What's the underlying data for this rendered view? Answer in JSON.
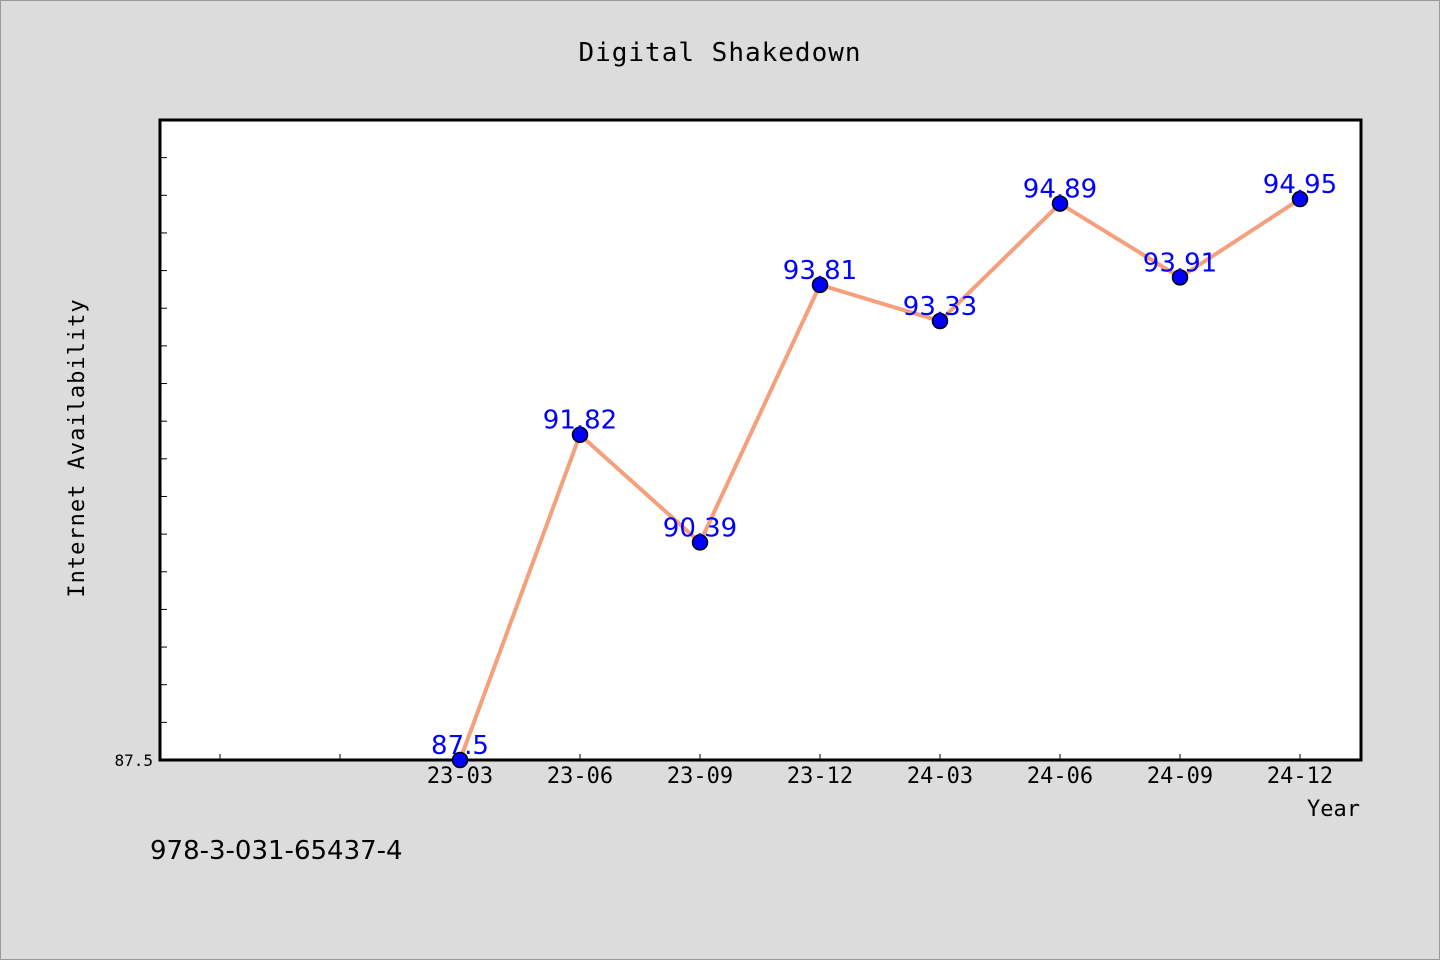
{
  "chart_data": {
    "type": "line",
    "title": "Digital Shakedown",
    "xlabel": "Year",
    "ylabel": "Internet Availability",
    "categories": [
      "23-03",
      "23-06",
      "23-09",
      "23-12",
      "24-03",
      "24-06",
      "24-09",
      "24-12"
    ],
    "series": [
      {
        "values": [
          87.5,
          91.82,
          90.39,
          93.81,
          93.33,
          94.89,
          93.91,
          94.95
        ],
        "data_labels": [
          "87.5",
          "91.82",
          "90.39",
          "93.81",
          "93.33",
          "94.89",
          "93.91",
          "94.95"
        ]
      }
    ],
    "y_tick_labels": [
      "87.5"
    ],
    "ylim": [
      87.5,
      96.0
    ],
    "grid": false,
    "legend": "none",
    "colors": {
      "line": "#f4a07c",
      "marker": "#0000ff",
      "data_label": "#0000ff",
      "background": "#dcdcdc",
      "plot_background": "#ffffff"
    }
  },
  "footer": {
    "isbn": "978-3-031-65437-4"
  }
}
